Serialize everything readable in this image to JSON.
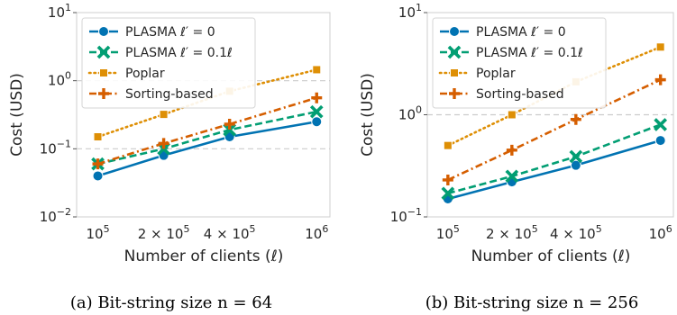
{
  "chart_data": [
    {
      "type": "line",
      "xscale": "log",
      "yscale": "log",
      "x": [
        100000,
        200000,
        400000,
        1000000
      ],
      "xticks": [
        {
          "value": 100000,
          "base": "10",
          "exp": "5",
          "coef": ""
        },
        {
          "value": 200000,
          "base": "10",
          "exp": "5",
          "coef": "2 × "
        },
        {
          "value": 400000,
          "base": "10",
          "exp": "5",
          "coef": "4 × "
        },
        {
          "value": 1000000,
          "base": "10",
          "exp": "6",
          "coef": ""
        }
      ],
      "yticks": [
        {
          "value": 0.01,
          "base": "10",
          "exp": "−2"
        },
        {
          "value": 0.1,
          "base": "10",
          "exp": "−1"
        },
        {
          "value": 1,
          "base": "10",
          "exp": "0"
        },
        {
          "value": 10,
          "base": "10",
          "exp": "1"
        }
      ],
      "xlim": [
        80000,
        1150000
      ],
      "ylim": [
        0.01,
        10
      ],
      "xlabel": "Number of clients (ℓ)",
      "ylabel": "Cost (USD)",
      "caption": "(a) Bit-string size n = 64",
      "grid": "dashed at decades",
      "legend_position": "top-left",
      "series": [
        {
          "name": "PLASMA ℓ′ = 0",
          "values": [
            0.04,
            0.08,
            0.15,
            0.25
          ],
          "color": "#0173b2",
          "marker": "circle",
          "line": "solid"
        },
        {
          "name": "PLASMA ℓ′ = 0.1ℓ",
          "values": [
            0.06,
            0.1,
            0.19,
            0.35
          ],
          "color": "#029e73",
          "marker": "x",
          "line": "dashed"
        },
        {
          "name": "Poplar",
          "values": [
            0.15,
            0.32,
            0.7,
            1.45
          ],
          "color": "#de8f05",
          "marker": "square",
          "line": "dotted"
        },
        {
          "name": "Sorting-based",
          "values": [
            0.06,
            0.12,
            0.23,
            0.56
          ],
          "color": "#d55e00",
          "marker": "plus",
          "line": "dashdot"
        }
      ]
    },
    {
      "type": "line",
      "xscale": "log",
      "yscale": "log",
      "x": [
        100000,
        200000,
        400000,
        1000000
      ],
      "xticks": [
        {
          "value": 100000,
          "base": "10",
          "exp": "5",
          "coef": ""
        },
        {
          "value": 200000,
          "base": "10",
          "exp": "5",
          "coef": "2 × "
        },
        {
          "value": 400000,
          "base": "10",
          "exp": "5",
          "coef": "4 × "
        },
        {
          "value": 1000000,
          "base": "10",
          "exp": "6",
          "coef": ""
        }
      ],
      "yticks": [
        {
          "value": 0.1,
          "base": "10",
          "exp": "−1"
        },
        {
          "value": 1,
          "base": "10",
          "exp": "0"
        },
        {
          "value": 10,
          "base": "10",
          "exp": "1"
        }
      ],
      "xlim": [
        80000,
        1150000
      ],
      "ylim": [
        0.1,
        10
      ],
      "xlabel": "Number of clients (ℓ)",
      "ylabel": "Cost (USD)",
      "caption": "(b) Bit-string size n = 256",
      "grid": "dashed at decades",
      "legend_position": "top-left",
      "series": [
        {
          "name": "PLASMA ℓ′ = 0",
          "values": [
            0.15,
            0.22,
            0.32,
            0.56
          ],
          "color": "#0173b2",
          "marker": "circle",
          "line": "solid"
        },
        {
          "name": "PLASMA ℓ′ = 0.1ℓ",
          "values": [
            0.17,
            0.25,
            0.39,
            0.8
          ],
          "color": "#029e73",
          "marker": "x",
          "line": "dashed"
        },
        {
          "name": "Poplar",
          "values": [
            0.5,
            1.0,
            2.1,
            4.6
          ],
          "color": "#de8f05",
          "marker": "square",
          "line": "dotted"
        },
        {
          "name": "Sorting-based",
          "values": [
            0.23,
            0.45,
            0.9,
            2.2
          ],
          "color": "#d55e00",
          "marker": "plus",
          "line": "dashdot"
        }
      ]
    }
  ]
}
